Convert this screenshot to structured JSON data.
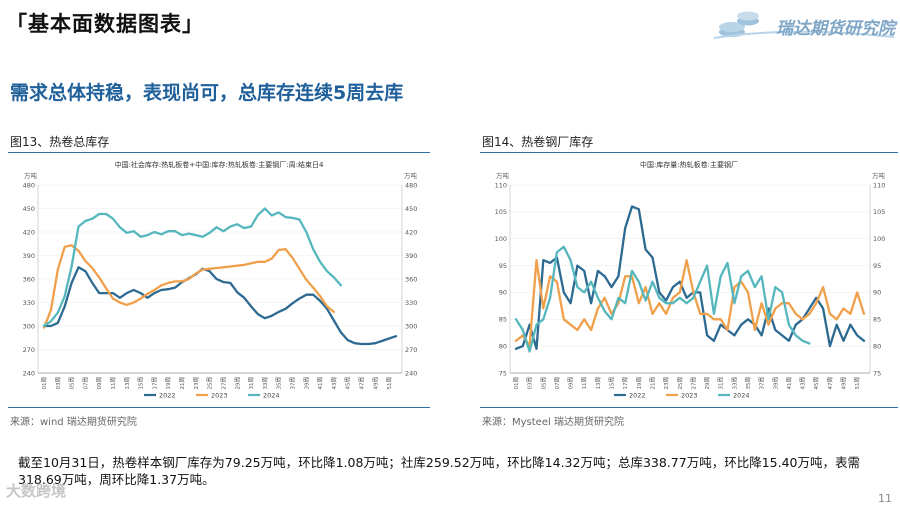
{
  "header": {
    "title": "「基本面数据图表」",
    "brand": "瑞达期货研究院"
  },
  "headline": "需求总体持稳，表现尚可，总库存连续5周去库",
  "charts": [
    {
      "figure_label": "图13、热卷总库存",
      "source": "来源：wind   瑞达期货研究院",
      "chart_data": {
        "type": "line",
        "title": "中国:社会库存:热轧板卷+中国:库存:热轧板卷:主要钢厂:周:结束日4",
        "unit": "万吨",
        "ylim": [
          240,
          480
        ],
        "yticks": [
          240,
          270,
          300,
          330,
          360,
          390,
          420,
          450,
          480
        ],
        "xticks": [
          "01周",
          "03周",
          "05周",
          "07周",
          "09周",
          "11周",
          "13周",
          "15周",
          "17周",
          "19周",
          "21周",
          "23周",
          "25周",
          "27周",
          "29周",
          "31周",
          "33周",
          "35周",
          "37周",
          "39周",
          "41周",
          "43周",
          "45周",
          "47周",
          "49周",
          "51周"
        ],
        "series": [
          {
            "name": "2022",
            "color": "#2d6a92",
            "x": [
              1,
              2,
              3,
              4,
              5,
              6,
              7,
              8,
              9,
              10,
              11,
              12,
              13,
              14,
              15,
              16,
              17,
              18,
              19,
              20,
              21,
              22,
              23,
              24,
              25,
              26,
              27,
              28,
              29,
              30,
              31,
              32,
              33,
              34,
              35,
              36,
              37,
              38,
              39,
              40,
              41,
              42,
              43,
              44,
              45,
              46,
              47,
              48,
              49,
              50,
              51,
              52
            ],
            "values": [
              300,
              300,
              304,
              325,
              355,
              375,
              370,
              355,
              342,
              342,
              342,
              336,
              342,
              346,
              342,
              336,
              342,
              346,
              347,
              349,
              356,
              361,
              366,
              373,
              370,
              360,
              356,
              355,
              343,
              336,
              325,
              315,
              310,
              313,
              318,
              322,
              329,
              335,
              340,
              340,
              332,
              322,
              307,
              292,
              282,
              278,
              277,
              277,
              278,
              281,
              284,
              287
            ]
          },
          {
            "name": "2023",
            "color": "#f0a04b",
            "x": [
              1,
              2,
              3,
              4,
              5,
              6,
              7,
              8,
              9,
              10,
              11,
              12,
              13,
              14,
              15,
              16,
              17,
              18,
              19,
              20,
              21,
              22,
              23,
              24,
              25,
              26,
              27,
              28,
              29,
              30,
              31,
              32,
              33,
              34,
              35,
              36,
              37,
              38,
              39,
              40,
              41,
              42,
              43
            ],
            "values": [
              298,
              320,
              372,
              401,
              403,
              396,
              383,
              374,
              362,
              348,
              335,
              330,
              327,
              330,
              335,
              341,
              346,
              352,
              355,
              357,
              357,
              360,
              367,
              372,
              373,
              374,
              375,
              376,
              377,
              378,
              380,
              382,
              382,
              386,
              397,
              398,
              387,
              373,
              359,
              349,
              338,
              325,
              318
            ]
          },
          {
            "name": "2024",
            "color": "#55b7bd",
            "x": [
              1,
              2,
              3,
              4,
              5,
              6,
              7,
              8,
              9,
              10,
              11,
              12,
              13,
              14,
              15,
              16,
              17,
              18,
              19,
              20,
              21,
              22,
              23,
              24,
              25,
              26,
              27,
              28,
              29,
              30,
              31,
              32,
              33,
              34,
              35,
              36,
              37,
              38,
              39,
              40,
              41,
              42,
              43,
              44
            ],
            "values": [
              300,
              306,
              317,
              338,
              376,
              427,
              434,
              437,
              443,
              443,
              437,
              426,
              419,
              421,
              414,
              416,
              420,
              417,
              421,
              421,
              416,
              418,
              416,
              414,
              419,
              426,
              421,
              427,
              430,
              425,
              427,
              442,
              450,
              441,
              445,
              439,
              438,
              436,
              420,
              398,
              382,
              370,
              362,
              352
            ]
          }
        ]
      }
    },
    {
      "figure_label": "图14、热卷钢厂库存",
      "source": "来源：Mysteel   瑞达期货研究院",
      "chart_data": {
        "type": "line",
        "title": "中国:库存量:热轧板卷:主要钢厂",
        "unit": "万吨",
        "ylim": [
          75,
          110
        ],
        "yticks": [
          75,
          80,
          85,
          90,
          95,
          100,
          105,
          110
        ],
        "xticks": [
          "01周",
          "03周",
          "05周",
          "07周",
          "09周",
          "11周",
          "13周",
          "15周",
          "17周",
          "19周",
          "21周",
          "23周",
          "25周",
          "27周",
          "29周",
          "31周",
          "33周",
          "35周",
          "37周",
          "39周",
          "41周",
          "43周",
          "45周",
          "47周",
          "49周",
          "51周"
        ],
        "series": [
          {
            "name": "2022",
            "color": "#2d6a92",
            "x": [
              1,
              2,
              3,
              4,
              5,
              6,
              7,
              8,
              9,
              10,
              11,
              12,
              13,
              14,
              15,
              16,
              17,
              18,
              19,
              20,
              21,
              22,
              23,
              24,
              25,
              26,
              27,
              28,
              29,
              30,
              31,
              32,
              33,
              34,
              35,
              36,
              37,
              38,
              39,
              40,
              41,
              42,
              43,
              44,
              45,
              46,
              47,
              48,
              49,
              50,
              51,
              52
            ],
            "values": [
              79.5,
              80,
              84,
              79.5,
              96,
              95.5,
              96.5,
              90,
              88,
              95,
              94,
              88,
              94,
              93,
              91,
              93,
              102,
              106,
              105.5,
              98,
              96.5,
              90,
              88.5,
              91,
              92,
              89,
              90,
              90,
              82,
              81,
              84,
              83,
              82,
              84,
              85,
              84,
              82,
              87,
              83,
              82,
              81,
              84,
              85,
              87,
              89,
              87,
              80,
              84,
              81,
              84,
              82,
              81
            ]
          },
          {
            "name": "2023",
            "color": "#f0a04b",
            "x": [
              1,
              2,
              3,
              4,
              5,
              6,
              7,
              8,
              9,
              10,
              11,
              12,
              13,
              14,
              15,
              16,
              17,
              18,
              19,
              20,
              21,
              22,
              23,
              24,
              25,
              26,
              27,
              28,
              29,
              30,
              31,
              32,
              33,
              34,
              35,
              36,
              37,
              38,
              39,
              40,
              41,
              42,
              43,
              44,
              45,
              46,
              47,
              48,
              49,
              50,
              51,
              52
            ],
            "values": [
              81,
              82,
              80,
              96,
              87,
              93,
              92,
              85,
              84,
              83,
              85,
              83,
              87,
              89,
              86,
              88,
              93,
              93,
              88,
              91,
              86,
              88,
              86,
              89,
              90,
              96,
              90,
              86,
              86,
              85,
              85,
              83,
              91,
              92,
              90,
              83,
              88,
              84,
              87,
              88,
              88,
              86,
              85,
              86,
              88,
              91,
              86,
              85,
              87,
              86,
              90,
              86
            ]
          },
          {
            "name": "2024",
            "color": "#55b7bd",
            "x": [
              1,
              2,
              3,
              4,
              5,
              6,
              7,
              8,
              9,
              10,
              11,
              12,
              13,
              14,
              15,
              16,
              17,
              18,
              19,
              20,
              21,
              22,
              23,
              24,
              25,
              26,
              27,
              28,
              29,
              30,
              31,
              32,
              33,
              34,
              35,
              36,
              37,
              38,
              39,
              40,
              41,
              42,
              43,
              44
            ],
            "values": [
              85,
              83,
              79,
              84,
              85,
              89,
              97.5,
              98.5,
              96,
              91,
              90,
              92,
              89,
              86.5,
              85,
              89,
              88,
              94,
              92,
              88.5,
              92,
              89,
              88,
              88,
              89,
              88,
              89,
              92,
              95,
              86,
              93,
              95.5,
              88,
              93,
              94,
              91,
              93,
              85,
              91,
              90,
              84,
              82,
              81,
              80.5
            ]
          }
        ]
      }
    }
  ],
  "summary": "截至10月31日，热卷样本钢厂库存为79.25万吨，环比降1.08万吨；社库259.52万吨，环比降14.32万吨；总库338.77万吨，环比降15.40万吨，表需318.69万吨，周环比降1.37万吨。",
  "watermark": "大数跨境",
  "page_number": "11"
}
